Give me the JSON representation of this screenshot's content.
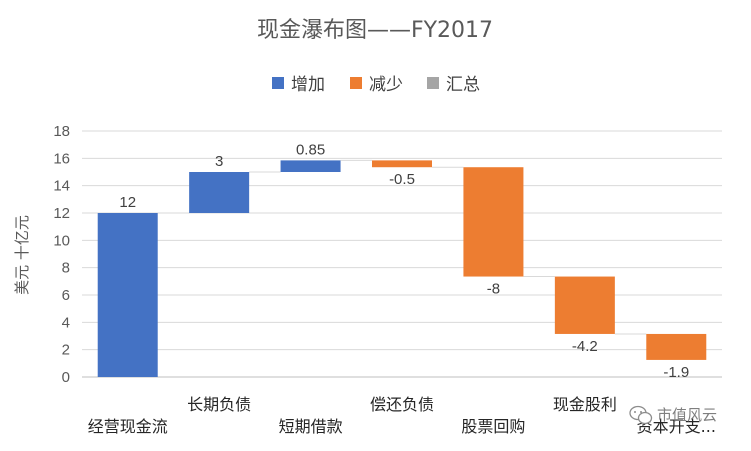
{
  "chart_data": {
    "type": "waterfall",
    "title": "现金瀑布图——FY2017",
    "ylabel": "美元 十亿元",
    "xlabel": "",
    "ylim": [
      0,
      18
    ],
    "yticks": [
      0,
      2,
      4,
      6,
      8,
      10,
      12,
      14,
      16,
      18
    ],
    "grid": true,
    "legend_position": "top",
    "legend": [
      {
        "name": "增加",
        "color": "#4472C4"
      },
      {
        "name": "减少",
        "color": "#ED7D31"
      },
      {
        "name": "汇总",
        "color": "#A5A5A5"
      }
    ],
    "categories": [
      "经营现金流",
      "长期负债",
      "短期借款",
      "偿还负债",
      "股票回购",
      "现金股利",
      "资本开支..."
    ],
    "values": [
      12,
      3,
      0.85,
      -0.5,
      -8,
      -4.2,
      -1.9
    ],
    "value_labels": [
      "12",
      "3",
      "0.85",
      "-0.5",
      "-8",
      "-4.2",
      "-1.9"
    ]
  },
  "watermark": {
    "text": "市值风云",
    "icon": "wechat-icon"
  }
}
